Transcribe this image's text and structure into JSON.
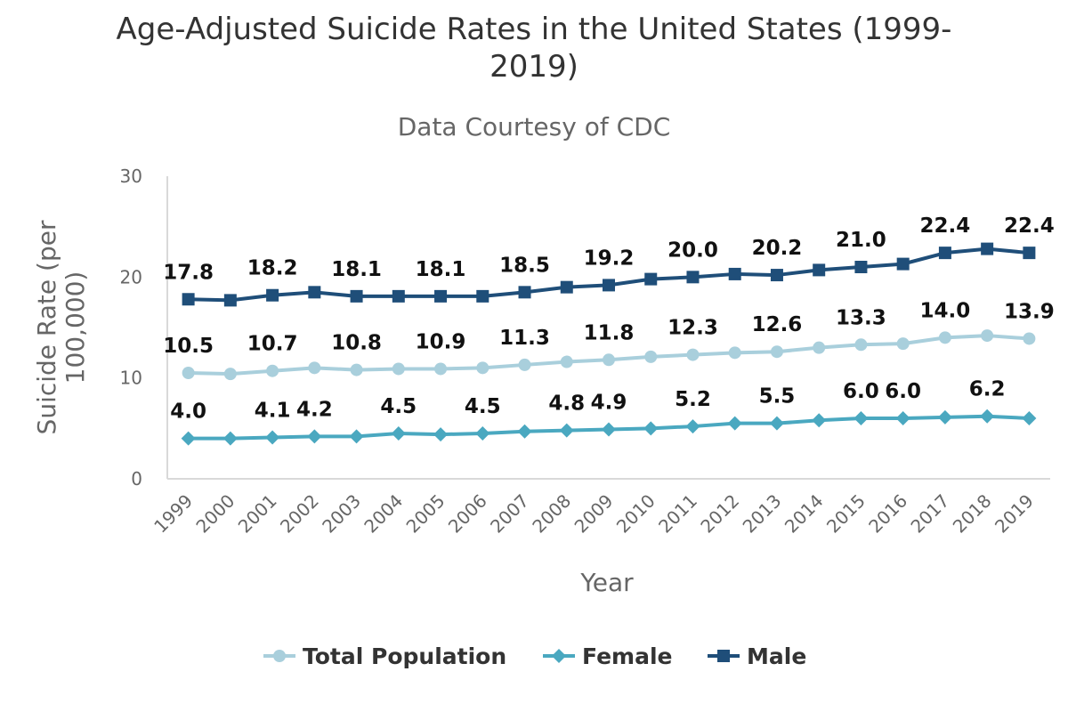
{
  "chart_data": {
    "type": "line",
    "title": "Age-Adjusted Suicide Rates in the United States (1999-2019)",
    "subtitle": "Data Courtesy of CDC",
    "xlabel": "Year",
    "ylabel": "Suicide Rate (per 100,000)",
    "ylim": [
      0,
      30
    ],
    "yticks": [
      "0",
      "10",
      "20",
      "30"
    ],
    "grid": false,
    "legend_position": "bottom",
    "categories": [
      "1999",
      "2000",
      "2001",
      "2002",
      "2003",
      "2004",
      "2005",
      "2006",
      "2007",
      "2008",
      "2009",
      "2010",
      "2011",
      "2012",
      "2013",
      "2014",
      "2015",
      "2016",
      "2017",
      "2018",
      "2019"
    ],
    "series": [
      {
        "name": "Total Population",
        "color": "#a9cfdc",
        "marker": "circle",
        "values": [
          10.5,
          10.4,
          10.7,
          11.0,
          10.8,
          10.9,
          10.9,
          11.0,
          11.3,
          11.6,
          11.8,
          12.1,
          12.3,
          12.5,
          12.6,
          13.0,
          13.3,
          13.4,
          14.0,
          14.2,
          13.9
        ],
        "labels": {
          "0": "10.5",
          "2": "10.7",
          "4": "10.8",
          "6": "10.9",
          "8": "11.3",
          "10": "11.8",
          "12": "12.3",
          "14": "12.6",
          "16": "13.3",
          "18": "14.0",
          "20": "13.9"
        }
      },
      {
        "name": "Female",
        "color": "#4aa8c0",
        "marker": "diamond",
        "values": [
          4.0,
          4.0,
          4.1,
          4.2,
          4.2,
          4.5,
          4.4,
          4.5,
          4.7,
          4.8,
          4.9,
          5.0,
          5.2,
          5.5,
          5.5,
          5.8,
          6.0,
          6.0,
          6.1,
          6.2,
          6.0
        ],
        "labels": {
          "0": "4.0",
          "2": "4.1",
          "3": "4.2",
          "5": "4.5",
          "7": "4.5",
          "9": "4.8",
          "10": "4.9",
          "12": "5.2",
          "14": "5.5",
          "16": "6.0",
          "17": "6.0",
          "19": "6.2"
        }
      },
      {
        "name": "Male",
        "color": "#1f4e79",
        "marker": "square",
        "values": [
          17.8,
          17.7,
          18.2,
          18.5,
          18.1,
          18.1,
          18.1,
          18.1,
          18.5,
          19.0,
          19.2,
          19.8,
          20.0,
          20.3,
          20.2,
          20.7,
          21.0,
          21.3,
          22.4,
          22.8,
          22.4
        ],
        "labels": {
          "0": "17.8",
          "2": "18.2",
          "4": "18.1",
          "6": "18.1",
          "8": "18.5",
          "10": "19.2",
          "12": "20.0",
          "14": "20.2",
          "16": "21.0",
          "18": "22.4",
          "20": "22.4"
        }
      }
    ]
  }
}
